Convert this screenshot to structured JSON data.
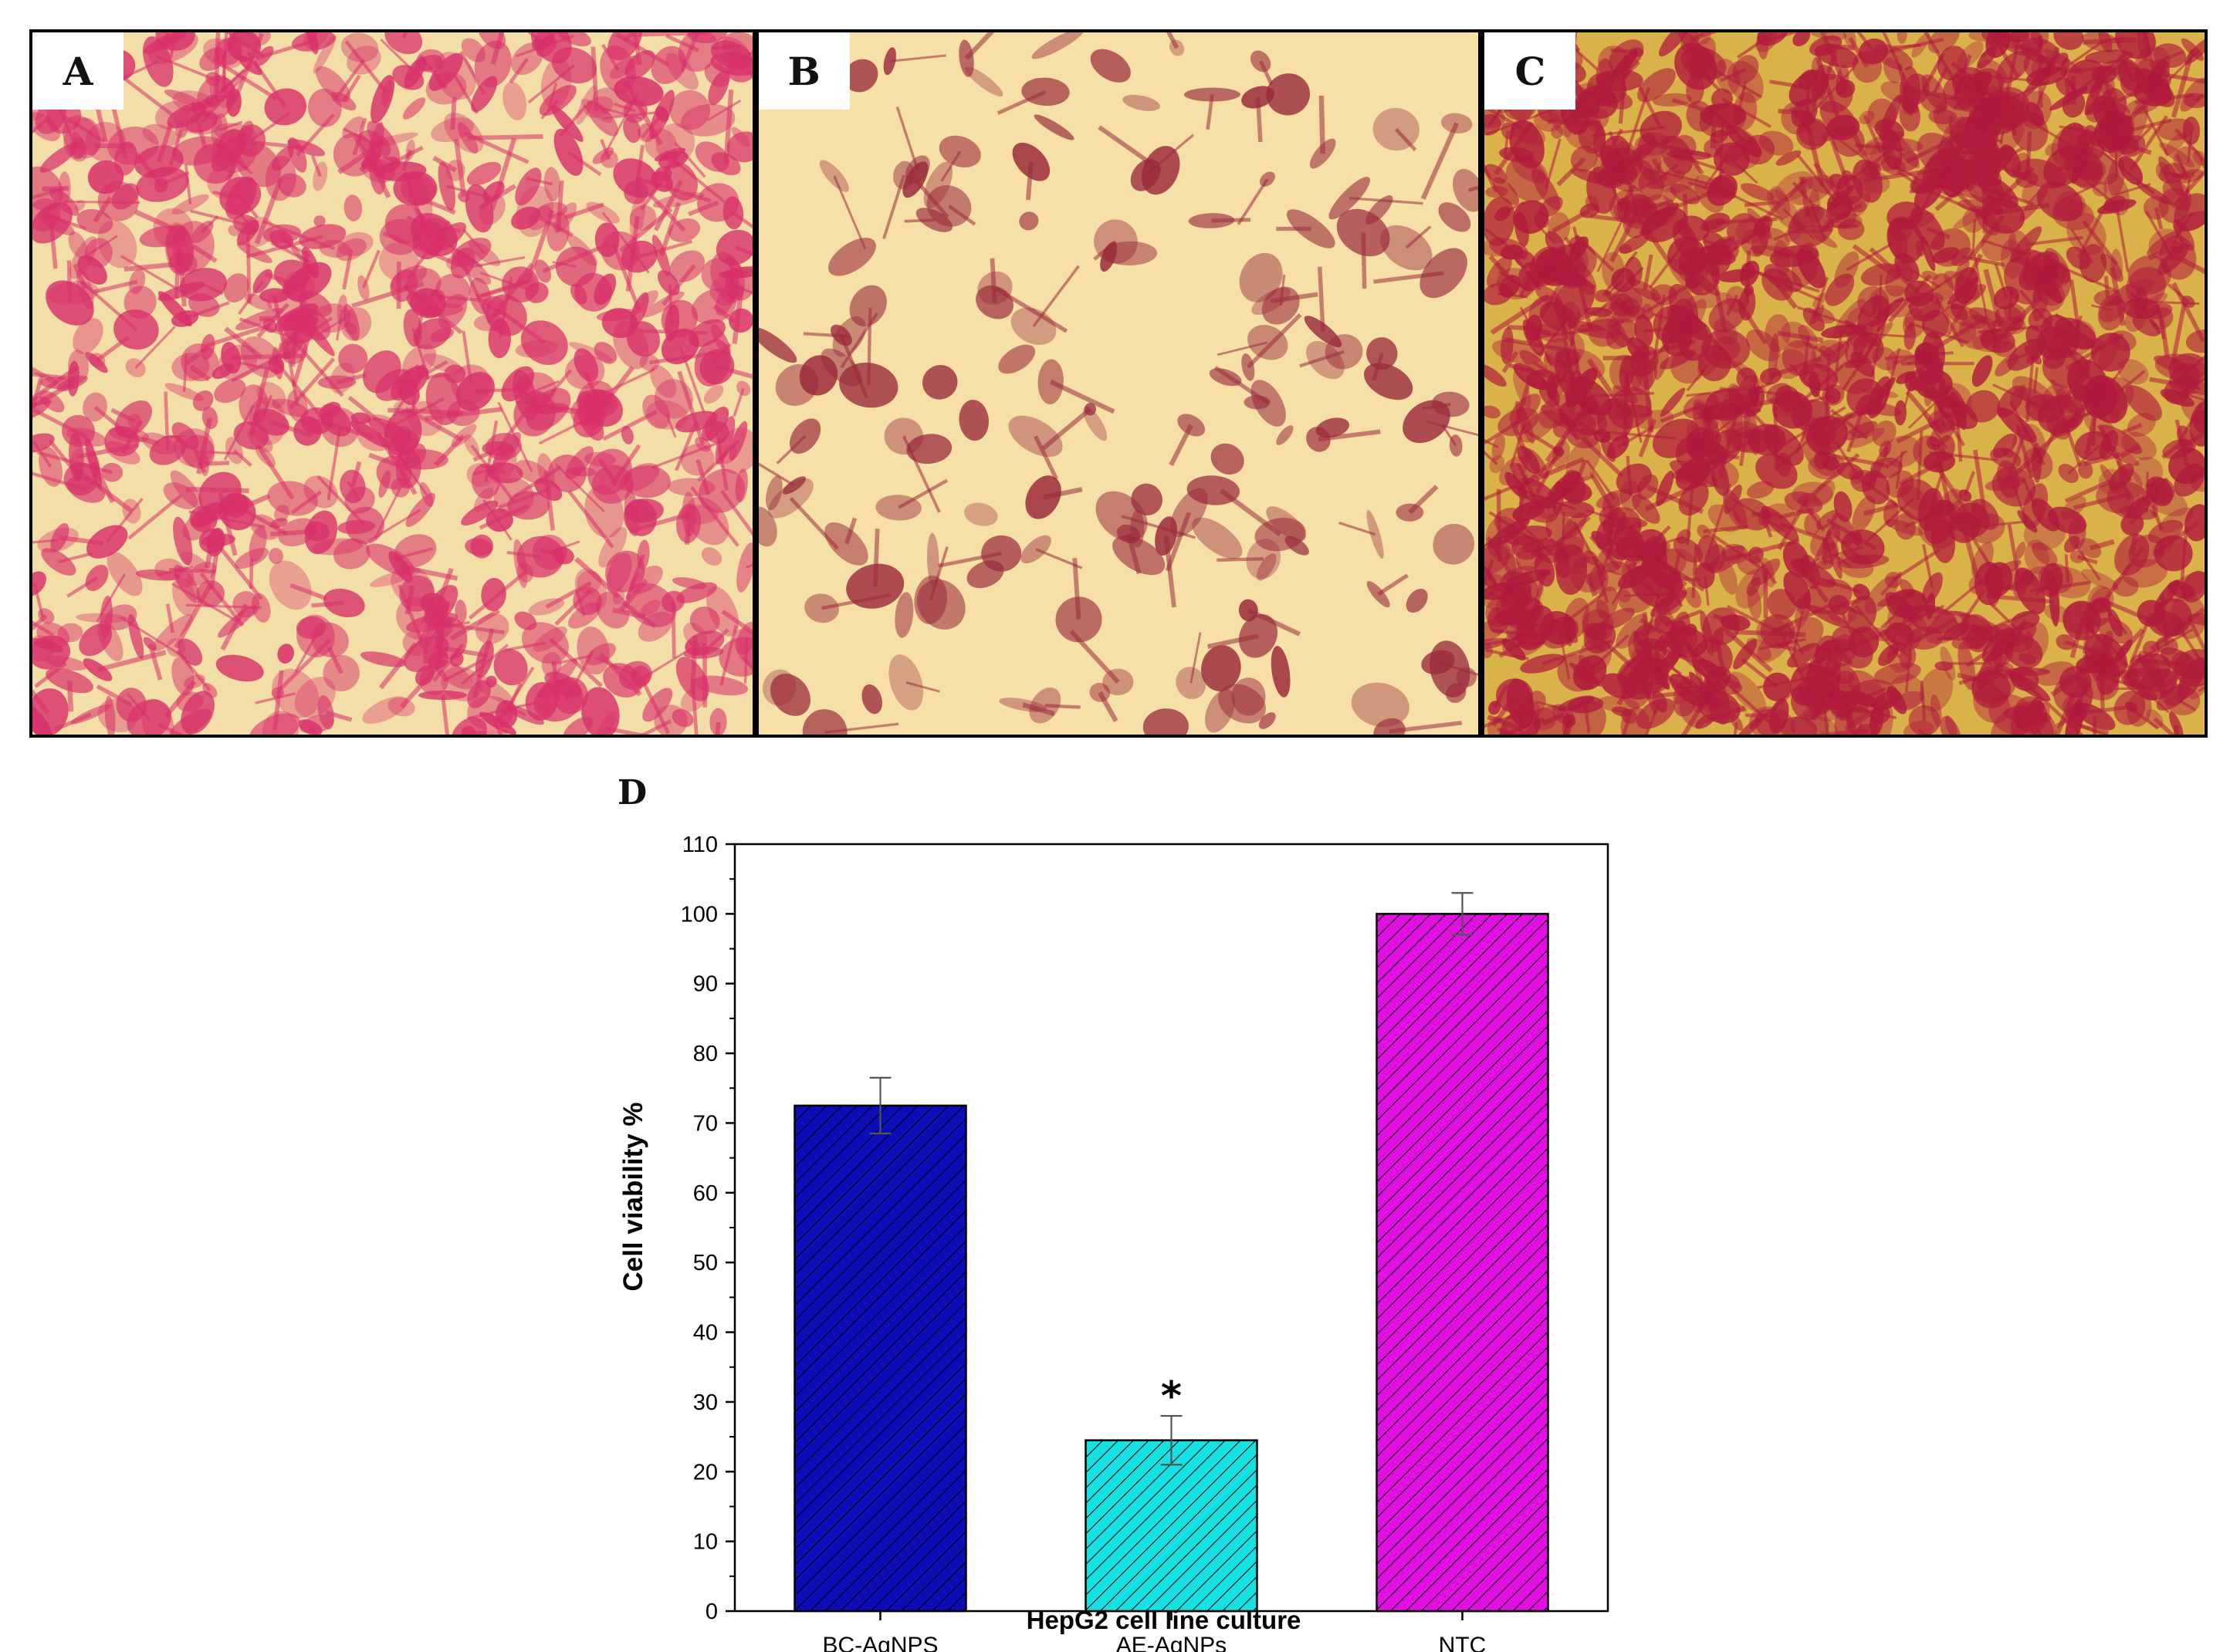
{
  "panels": {
    "a_label": "A",
    "b_label": "B",
    "c_label": "C",
    "d_label": "D"
  },
  "colors": {
    "micro_a_bg": "#f2dea6",
    "micro_a_stain": "#d8306a",
    "micro_b_bg": "#f6e0a8",
    "micro_b_stain": "#9a2a3c",
    "micro_c_bg": "#d9b24a",
    "micro_c_stain": "#b01a3c"
  },
  "chart_data": {
    "type": "bar",
    "xlabel": "HepG2 cell line culture",
    "ylabel": "Cell viability %",
    "ylim": [
      0,
      110
    ],
    "yticks": [
      0,
      10,
      20,
      30,
      40,
      50,
      60,
      70,
      80,
      90,
      100,
      110
    ],
    "categories": [
      "BC-AgNPS",
      "AE-AgNPs",
      "NTC"
    ],
    "values": [
      72.5,
      24.5,
      100
    ],
    "errors": [
      4,
      3.5,
      3
    ],
    "colors": [
      "#0d0db8",
      "#14e2e2",
      "#e20fe2"
    ],
    "fill_pattern": "diagonal-hatch",
    "annotations": [
      {
        "category": "AE-AgNPs",
        "text": "*"
      }
    ],
    "grid": false
  }
}
